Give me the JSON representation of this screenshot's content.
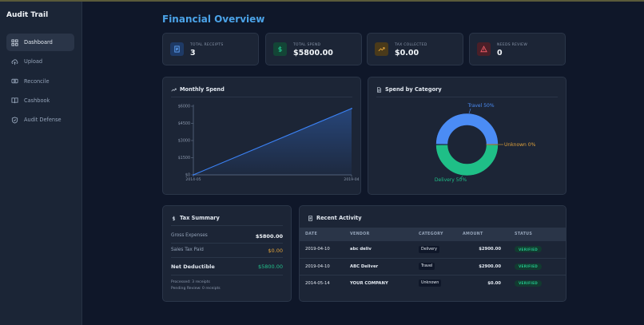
{
  "sidebar": {
    "brand": "Audit Trail",
    "items": [
      {
        "label": "Dashboard",
        "icon": "grid-icon",
        "active": true
      },
      {
        "label": "Upload",
        "icon": "cloud-upload-icon",
        "active": false
      },
      {
        "label": "Reconcile",
        "icon": "reconcile-icon",
        "active": false
      },
      {
        "label": "Cashbook",
        "icon": "book-icon",
        "active": false
      },
      {
        "label": "Audit Defense",
        "icon": "shield-icon",
        "active": false
      }
    ]
  },
  "page": {
    "title": "Financial Overview"
  },
  "stats": [
    {
      "label": "TOTAL RECEIPTS",
      "value": "3",
      "icon": "receipt-icon",
      "color": "#3b82f6"
    },
    {
      "label": "TOTAL SPEND",
      "value": "$5800.00",
      "icon": "dollar-icon",
      "color": "#22c08a"
    },
    {
      "label": "TAX COLLECTED",
      "value": "$0.00",
      "icon": "trend-icon",
      "color": "#e0a23a"
    },
    {
      "label": "NEEDS REVIEW",
      "value": "0",
      "icon": "warning-icon",
      "color": "#e0505a"
    }
  ],
  "monthly": {
    "title": "Monthly Spend"
  },
  "category": {
    "title": "Spend by Category"
  },
  "chart_data": [
    {
      "type": "area",
      "x": [
        "2014-05",
        "2019-04"
      ],
      "values": [
        0,
        5800
      ],
      "yticks": [
        "$0",
        "$1500",
        "$3000",
        "$4500",
        "$6000"
      ],
      "ylim": [
        0,
        6000
      ],
      "color": "#3b82f6"
    },
    {
      "type": "pie",
      "labels": [
        "Travel 50%",
        "Unknown 0%",
        "Delivery 50%"
      ],
      "values": [
        50,
        0,
        50
      ],
      "colors": [
        "#4b8cf5",
        "#e0a23a",
        "#1fbf87"
      ]
    }
  ],
  "tax": {
    "title": "Tax Summary",
    "gross_label": "Gross Expenses",
    "gross_value": "$5800.00",
    "sales_label": "Sales Tax Paid",
    "sales_value": "$0.00",
    "net_label": "Net Deductible",
    "net_value": "$5800.00",
    "processed": "Processed: 3 receipts",
    "pending": "Pending Review: 0 receipts"
  },
  "activity": {
    "title": "Recent Activity",
    "headers": [
      "DATE",
      "VENDOR",
      "CATEGORY",
      "AMOUNT",
      "STATUS"
    ],
    "rows": [
      {
        "date": "2019-04-10",
        "vendor": "abc deliv",
        "category": "Delivery",
        "amount": "$2900.00",
        "status": "VERIFIED"
      },
      {
        "date": "2019-04-10",
        "vendor": "ABC Deliver",
        "category": "Travel",
        "amount": "$2900.00",
        "status": "VERIFIED"
      },
      {
        "date": "2014-05-14",
        "vendor": "YOUR COMPANY",
        "category": "Unknown",
        "amount": "$0.00",
        "status": "VERIFIED"
      }
    ]
  }
}
